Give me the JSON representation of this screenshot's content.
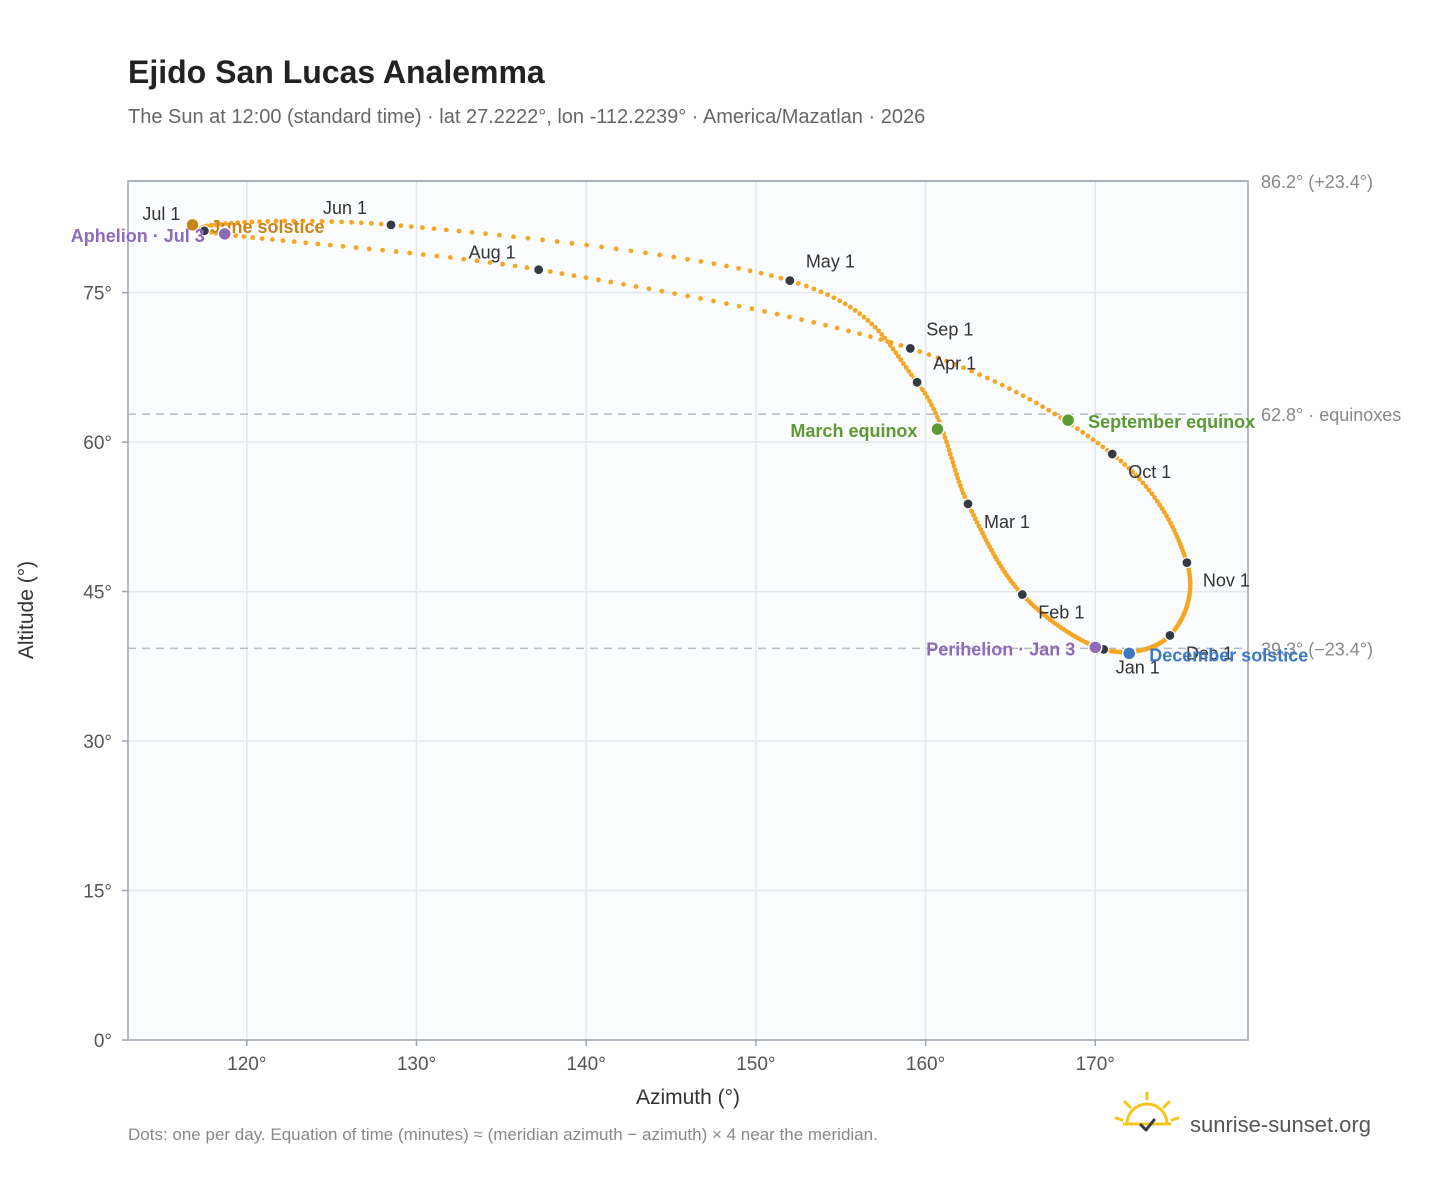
{
  "header": {
    "title": "Ejido San Lucas Analemma",
    "subtitle": "The Sun at 12:00 (standard time) · lat 27.2222°, lon -112.2239° · America/Mazatlan · 2026"
  },
  "footer": {
    "note": "Dots: one per day. Equation of time (minutes) ≈ (meridian azimuth − azimuth) × 4 near the meridian.",
    "brand": "sunrise-sunset.org"
  },
  "colors": {
    "curve": "#f5a623",
    "month_dot": "#333a44",
    "solstice_june": "#c8861a",
    "solstice_december": "#3b7ac0",
    "equinox": "#5a9a30",
    "apsis": "#8e6bb8",
    "grid": "#e3e7ec",
    "plot_bg": "#fafcfe",
    "frame": "#9aa4b0"
  },
  "chart_data": {
    "type": "scatter",
    "xlabel": "Azimuth (°)",
    "ylabel": "Altitude (°)",
    "xlim": [
      113,
      179
    ],
    "ylim": [
      0,
      86.2
    ],
    "x_ticks": [
      120,
      130,
      140,
      150,
      160,
      170
    ],
    "x_tick_labels": [
      "120°",
      "130°",
      "140°",
      "150°",
      "160°",
      "170°"
    ],
    "y_ticks": [
      0,
      15,
      30,
      45,
      60,
      75
    ],
    "y_tick_labels": [
      "0°",
      "15°",
      "30°",
      "45°",
      "60°",
      "75°"
    ],
    "grid": true,
    "reference_lines": [
      {
        "y": 86.2,
        "label": "86.2° (+23.4°)",
        "style": "solid"
      },
      {
        "y": 62.8,
        "label": "62.8° · equinoxes",
        "style": "dashed"
      },
      {
        "y": 39.3,
        "label": "39.3° (−23.4°)",
        "style": "dashed"
      }
    ],
    "monthly_points": [
      {
        "label": "Jan 1",
        "x": 170.5,
        "y": 39.2
      },
      {
        "label": "Feb 1",
        "x": 165.7,
        "y": 44.7
      },
      {
        "label": "Mar 1",
        "x": 162.5,
        "y": 53.8
      },
      {
        "label": "Apr 1",
        "x": 159.5,
        "y": 66.0
      },
      {
        "label": "May 1",
        "x": 152.0,
        "y": 76.2
      },
      {
        "label": "Jun 1",
        "x": 128.5,
        "y": 81.8
      },
      {
        "label": "Jul 1",
        "x": 117.5,
        "y": 81.2
      },
      {
        "label": "Aug 1",
        "x": 137.2,
        "y": 77.3
      },
      {
        "label": "Sep 1",
        "x": 159.1,
        "y": 69.4
      },
      {
        "label": "Oct 1",
        "x": 171.0,
        "y": 58.8
      },
      {
        "label": "Nov 1",
        "x": 175.4,
        "y": 47.9
      },
      {
        "label": "Dec 1",
        "x": 174.4,
        "y": 40.6
      }
    ],
    "events": [
      {
        "label": "June solstice",
        "x": 116.8,
        "y": 81.8,
        "kind": "solstice_june"
      },
      {
        "label": "Aphelion · Jul 3",
        "x": 118.7,
        "y": 80.9,
        "kind": "apsis"
      },
      {
        "label": "March equinox",
        "x": 160.7,
        "y": 61.3,
        "kind": "equinox"
      },
      {
        "label": "September equinox",
        "x": 168.4,
        "y": 62.2,
        "kind": "equinox"
      },
      {
        "label": "Perihelion · Jan 3",
        "x": 170.0,
        "y": 39.4,
        "kind": "apsis"
      },
      {
        "label": "December solstice",
        "x": 172.0,
        "y": 38.8,
        "kind": "solstice_december"
      }
    ]
  }
}
